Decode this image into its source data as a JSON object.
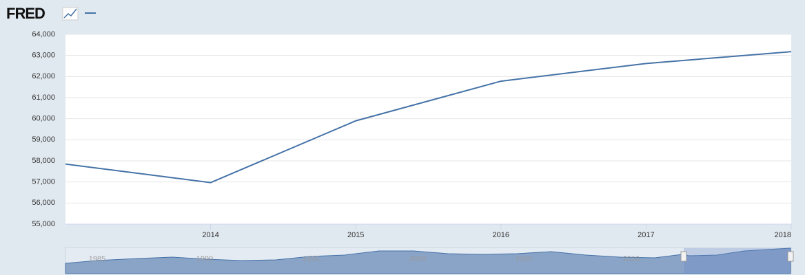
{
  "header": {
    "logo": "FRED"
  },
  "chart_data": {
    "type": "line",
    "x": [
      2013,
      2014,
      2015,
      2016,
      2017,
      2018
    ],
    "series": [
      {
        "color": "#4572a7",
        "values": [
          57850,
          56970,
          59900,
          61780,
          62620,
          63180
        ]
      }
    ],
    "xlim": [
      2013,
      2018
    ],
    "xticks": [
      2014,
      2015,
      2016,
      2017,
      2018
    ],
    "ylim": [
      55000,
      64000
    ],
    "yticks": [
      {
        "value": 55000,
        "label": "55,000"
      },
      {
        "value": 56000,
        "label": "56,000"
      },
      {
        "value": 57000,
        "label": "57,000"
      },
      {
        "value": 58000,
        "label": "58,000"
      },
      {
        "value": 59000,
        "label": "59,000"
      },
      {
        "value": 60000,
        "label": "60,000"
      },
      {
        "value": 61000,
        "label": "61,000"
      },
      {
        "value": 62000,
        "label": "62,000"
      },
      {
        "value": 63000,
        "label": "63,000"
      },
      {
        "value": 64000,
        "label": "64,000"
      }
    ],
    "grid": true
  },
  "navigator": {
    "labels": [
      "1985",
      "1990",
      "1995",
      "2000",
      "2005",
      "2010"
    ]
  }
}
